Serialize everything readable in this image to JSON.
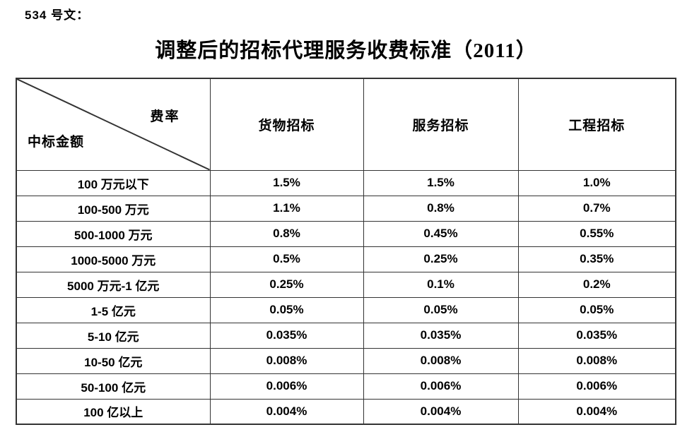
{
  "page": {
    "doc_label": "534 号文：",
    "title": "调整后的招标代理服务收费标准（2011）"
  },
  "table": {
    "corner": {
      "top_right_label": "费率",
      "bottom_left_label": "中标金额"
    },
    "columns": [
      "货物招标",
      "服务招标",
      "工程招标"
    ],
    "rows": [
      {
        "amount": "100 万元以下",
        "rates": [
          "1.5%",
          "1.5%",
          "1.0%"
        ]
      },
      {
        "amount": "100-500 万元",
        "rates": [
          "1.1%",
          "0.8%",
          "0.7%"
        ]
      },
      {
        "amount": "500-1000 万元",
        "rates": [
          "0.8%",
          "0.45%",
          "0.55%"
        ]
      },
      {
        "amount": "1000-5000 万元",
        "rates": [
          "0.5%",
          "0.25%",
          "0.35%"
        ]
      },
      {
        "amount": "5000 万元-1 亿元",
        "rates": [
          "0.25%",
          "0.1%",
          "0.2%"
        ]
      },
      {
        "amount": "1-5 亿元",
        "rates": [
          "0.05%",
          "0.05%",
          "0.05%"
        ]
      },
      {
        "amount": "5-10 亿元",
        "rates": [
          "0.035%",
          "0.035%",
          "0.035%"
        ]
      },
      {
        "amount": "10-50 亿元",
        "rates": [
          "0.008%",
          "0.008%",
          "0.008%"
        ]
      },
      {
        "amount": "50-100 亿元",
        "rates": [
          "0.006%",
          "0.006%",
          "0.006%"
        ]
      },
      {
        "amount": "100 亿以上",
        "rates": [
          "0.004%",
          "0.004%",
          "0.004%"
        ]
      }
    ],
    "border_color": "#333333",
    "text_color": "#000000"
  }
}
